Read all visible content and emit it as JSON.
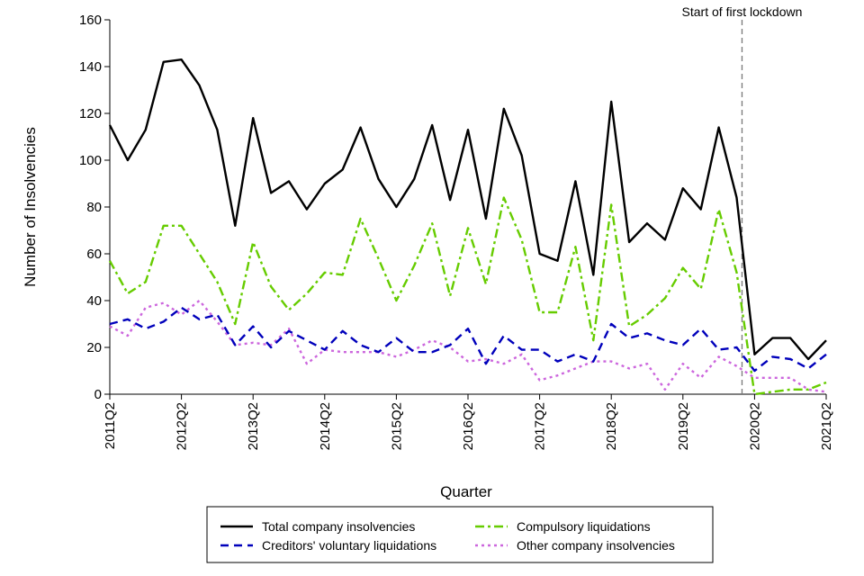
{
  "chart_data": {
    "type": "line",
    "title": "",
    "xlabel": "Quarter",
    "ylabel": "Number of Insolvencies",
    "ylim": [
      0,
      160
    ],
    "yticks": [
      0,
      20,
      40,
      60,
      80,
      100,
      120,
      140,
      160
    ],
    "x_count": 41,
    "xticks": [
      {
        "index": 0,
        "label": "2011Q2"
      },
      {
        "index": 4,
        "label": "2012Q2"
      },
      {
        "index": 8,
        "label": "2013Q2"
      },
      {
        "index": 12,
        "label": "2014Q2"
      },
      {
        "index": 16,
        "label": "2015Q2"
      },
      {
        "index": 20,
        "label": "2016Q2"
      },
      {
        "index": 24,
        "label": "2017Q2"
      },
      {
        "index": 28,
        "label": "2018Q2"
      },
      {
        "index": 32,
        "label": "2019Q2"
      },
      {
        "index": 36,
        "label": "2020Q2"
      },
      {
        "index": 40,
        "label": "2021Q2"
      }
    ],
    "annotation": {
      "label": "Start of first lockdown",
      "x_index": 35.3
    },
    "legend_position": "bottom",
    "series": [
      {
        "name": "Total company insolvencies",
        "color": "#000000",
        "style": "solid",
        "values": [
          115,
          100,
          113,
          142,
          143,
          132,
          113,
          72,
          118,
          86,
          91,
          79,
          90,
          96,
          114,
          92,
          80,
          92,
          115,
          83,
          113,
          75,
          122,
          102,
          60,
          57,
          91,
          51,
          125,
          65,
          73,
          66,
          88,
          79,
          114,
          84,
          17,
          24,
          24,
          15,
          23
        ]
      },
      {
        "name": "Compulsory liquidations",
        "color": "#66cc00",
        "style": "dashdot",
        "values": [
          57,
          43,
          48,
          72,
          72,
          60,
          48,
          30,
          65,
          46,
          36,
          43,
          52,
          51,
          75,
          58,
          40,
          55,
          73,
          42,
          71,
          47,
          84,
          66,
          35,
          35,
          63,
          23,
          81,
          29,
          34,
          41,
          54,
          45,
          79,
          52,
          0,
          1,
          2,
          2,
          5
        ]
      },
      {
        "name": "Creditors' voluntary liquidations",
        "color": "#0000bb",
        "style": "dashed",
        "values": [
          30,
          32,
          28,
          31,
          37,
          32,
          34,
          21,
          29,
          20,
          27,
          23,
          19,
          27,
          21,
          18,
          24,
          18,
          18,
          21,
          28,
          13,
          25,
          19,
          19,
          14,
          17,
          14,
          30,
          24,
          26,
          23,
          21,
          28,
          19,
          20,
          10,
          16,
          15,
          11,
          17
        ]
      },
      {
        "name": "Other company insolvencies",
        "color": "#cc66dd",
        "style": "dotted",
        "values": [
          29,
          25,
          37,
          39,
          34,
          40,
          31,
          21,
          22,
          21,
          28,
          13,
          19,
          18,
          18,
          18,
          16,
          19,
          23,
          20,
          14,
          15,
          13,
          17,
          6,
          8,
          11,
          14,
          14,
          11,
          13,
          2,
          13,
          7,
          16,
          12,
          7,
          7,
          7,
          2,
          1
        ]
      }
    ],
    "legend_order": [
      "Total company insolvencies",
      "Creditors' voluntary liquidations",
      "Compulsory liquidations",
      "Other company insolvencies"
    ]
  }
}
